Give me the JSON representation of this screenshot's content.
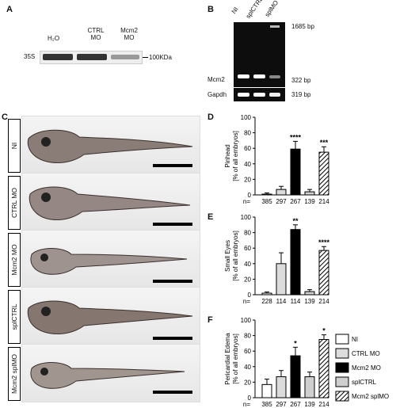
{
  "panels": {
    "A": {
      "label": "A",
      "lanes": [
        "H₂O",
        "CTRL MO",
        "Mcm2 MO"
      ],
      "left_label": "35S",
      "marker": "100KDa"
    },
    "B": {
      "label": "B",
      "lanes": [
        "NI",
        "splCTRL",
        "splMO"
      ],
      "bands": [
        "1685 bp",
        "322 bp",
        "319 bp"
      ],
      "genes": [
        "Mcm2",
        "Gapdh"
      ]
    },
    "C": {
      "label": "C",
      "rows": [
        "NI",
        "CTRL MO",
        "Mcm2 MO",
        "splCTRL",
        "Mcm2 splMO"
      ]
    }
  },
  "legend": [
    "NI",
    "CTRL MO",
    "Mcm2 MO",
    "splCTRL",
    "Mcm2 splMO"
  ],
  "chart_data": [
    {
      "type": "bar",
      "panel": "D",
      "ylabel": [
        "Pinhead",
        "[% of all embryos]"
      ],
      "ylim": [
        0,
        100
      ],
      "yticks": [
        "0",
        "20",
        "40",
        "60",
        "80",
        "100"
      ],
      "categories": [
        "NI",
        "CTRL MO",
        "Mcm2 MO",
        "splCTRL",
        "Mcm2 splMO"
      ],
      "values": [
        1,
        7,
        59,
        4,
        55
      ],
      "errors": [
        1.5,
        4,
        10,
        3,
        7
      ],
      "n_prefix": "n=",
      "n": [
        "385",
        "297",
        "267",
        "139",
        "214"
      ],
      "stars": [
        "",
        "",
        "****",
        "",
        "***"
      ]
    },
    {
      "type": "bar",
      "panel": "E",
      "ylabel": [
        "Small Eyes",
        "[% of all embryos]"
      ],
      "ylim": [
        0,
        100
      ],
      "yticks": [
        "0",
        "20",
        "40",
        "60",
        "80",
        "100"
      ],
      "categories": [
        "NI",
        "CTRL MO",
        "Mcm2 MO",
        "splCTRL",
        "Mcm2 splMO"
      ],
      "values": [
        2,
        40,
        84,
        4,
        57
      ],
      "errors": [
        1.5,
        14,
        6,
        2.5,
        5
      ],
      "n_prefix": "n=",
      "n": [
        "228",
        "114",
        "114",
        "139",
        "214"
      ],
      "stars": [
        "",
        "",
        "**",
        "",
        "****"
      ]
    },
    {
      "type": "bar",
      "panel": "F",
      "ylabel": [
        "Pericardial Edema",
        "[% of all embryos]"
      ],
      "ylim": [
        0,
        100
      ],
      "yticks": [
        "0",
        "20",
        "40",
        "60",
        "80",
        "100"
      ],
      "categories": [
        "NI",
        "CTRL MO",
        "Mcm2 MO",
        "splCTRL",
        "Mcm2 splMO"
      ],
      "values": [
        17,
        27,
        54,
        27,
        75
      ],
      "errors": [
        7,
        8,
        11,
        6,
        6
      ],
      "n_prefix": "n=",
      "n": [
        "385",
        "297",
        "267",
        "139",
        "214"
      ],
      "stars": [
        "",
        "",
        "*",
        "",
        "*"
      ]
    }
  ]
}
